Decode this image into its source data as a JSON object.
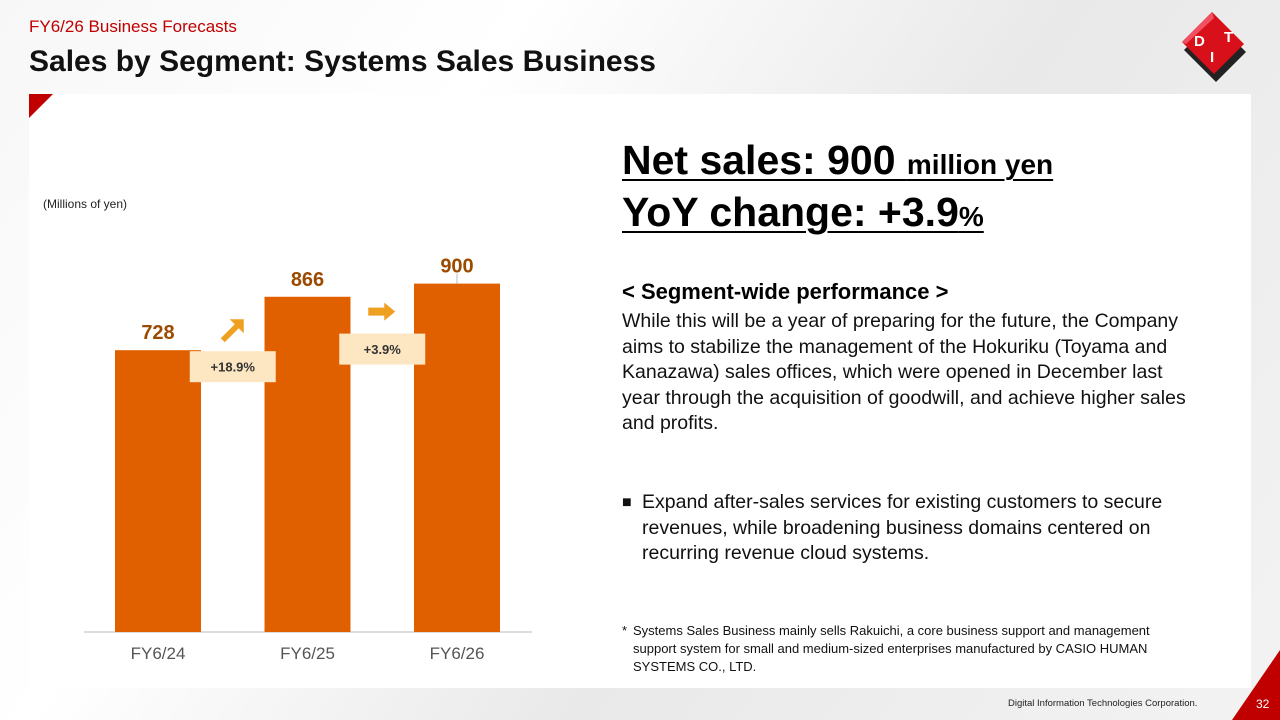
{
  "header": {
    "subtitle": "FY6/26  Business Forecasts",
    "title": "Sales by Segment: Systems Sales Business"
  },
  "colors": {
    "accent_red": "#c00000",
    "bar_orange": "#e06000",
    "label_brown": "#9c4a00",
    "badge_bg": "#fde6c2",
    "arrow_orange": "#f0a020"
  },
  "chart_data": {
    "type": "bar",
    "units_label": "(Millions of yen)",
    "categories": [
      "FY6/24",
      "FY6/25",
      "FY6/26"
    ],
    "values": [
      728,
      866,
      900
    ],
    "value_labels": [
      "728",
      "866",
      "900"
    ],
    "growth_labels": [
      "+18.9%",
      "+3.9%"
    ],
    "ylim": [
      0,
      1100
    ]
  },
  "headline": {
    "net_sales_main": "Net sales: 900 ",
    "net_sales_unit": "million yen",
    "yoy_main": "YoY change: +3.9",
    "yoy_unit": "%"
  },
  "segment": {
    "heading": "< Segment-wide performance >",
    "body": "While this will be a year of preparing for the future, the Company aims to stabilize the management of the Hokuriku (Toyama and Kanazawa) sales offices, which were opened in December last year through the acquisition of goodwill, and achieve higher sales and profits.",
    "bullet_mark": "■",
    "bullet": "Expand after-sales services for existing customers to secure revenues, while broadening business domains centered on recurring revenue cloud systems."
  },
  "note": {
    "mark": "*",
    "text": "Systems Sales Business mainly sells Rakuichi, a core business support and management support system for small and medium-sized enterprises manufactured by CASIO HUMAN SYSTEMS CO., LTD."
  },
  "footer": {
    "company": "Digital Information Technologies Corporation.",
    "page": "32"
  },
  "logo": {
    "letters": [
      "D",
      "I",
      "T"
    ]
  }
}
